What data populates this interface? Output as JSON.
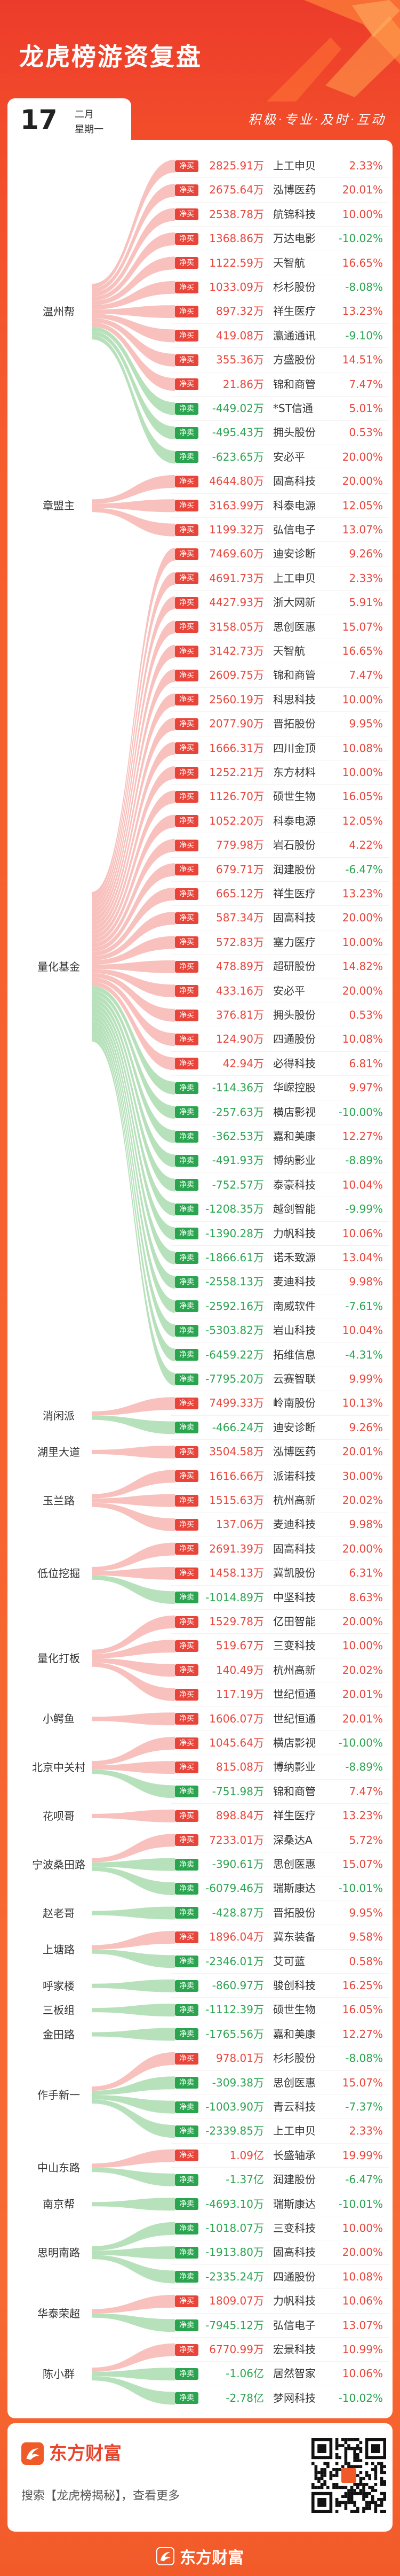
{
  "header": {
    "title": "龙虎榜游资复盘",
    "day": "17",
    "month": "二月",
    "weekday": "星期一",
    "slogan": "积极·专业·及时·互动"
  },
  "colors": {
    "brand_orange": "#f05a28",
    "buy": "#e9443a",
    "sell": "#2aa44f",
    "buy_ribbon": "#f6b1ac",
    "sell_ribbon": "#a5d9aa"
  },
  "groups": [
    {
      "name": "温州帮",
      "rows": [
        {
          "badge": "净买",
          "amount": "2825.91万",
          "stock": "上工申贝",
          "change": "2.33%"
        },
        {
          "badge": "净买",
          "amount": "2675.64万",
          "stock": "泓博医药",
          "change": "20.01%"
        },
        {
          "badge": "净买",
          "amount": "2538.78万",
          "stock": "航锦科技",
          "change": "10.00%"
        },
        {
          "badge": "净买",
          "amount": "1368.86万",
          "stock": "万达电影",
          "change": "-10.02%"
        },
        {
          "badge": "净买",
          "amount": "1122.59万",
          "stock": "天智航",
          "change": "16.65%"
        },
        {
          "badge": "净买",
          "amount": "1033.09万",
          "stock": "杉杉股份",
          "change": "-8.08%"
        },
        {
          "badge": "净买",
          "amount": "897.32万",
          "stock": "祥生医疗",
          "change": "13.23%"
        },
        {
          "badge": "净买",
          "amount": "419.08万",
          "stock": "瀛通通讯",
          "change": "-9.10%"
        },
        {
          "badge": "净买",
          "amount": "355.36万",
          "stock": "方盛股份",
          "change": "14.51%"
        },
        {
          "badge": "净买",
          "amount": "21.86万",
          "stock": "锦和商管",
          "change": "7.47%"
        },
        {
          "badge": "净卖",
          "amount": "-449.02万",
          "stock": "*ST信通",
          "change": "5.01%"
        },
        {
          "badge": "净卖",
          "amount": "-495.43万",
          "stock": "拥头股份",
          "change": "0.53%"
        },
        {
          "badge": "净卖",
          "amount": "-623.65万",
          "stock": "安必平",
          "change": "20.00%"
        }
      ]
    },
    {
      "name": "章盟主",
      "rows": [
        {
          "badge": "净买",
          "amount": "4644.80万",
          "stock": "固高科技",
          "change": "20.00%"
        },
        {
          "badge": "净买",
          "amount": "3163.99万",
          "stock": "科泰电源",
          "change": "12.05%"
        },
        {
          "badge": "净买",
          "amount": "1199.32万",
          "stock": "弘信电子",
          "change": "13.07%"
        }
      ]
    },
    {
      "name": "量化基金",
      "rows": [
        {
          "badge": "净买",
          "amount": "7469.60万",
          "stock": "迪安诊断",
          "change": "9.26%"
        },
        {
          "badge": "净买",
          "amount": "4691.73万",
          "stock": "上工申贝",
          "change": "2.33%"
        },
        {
          "badge": "净买",
          "amount": "4427.93万",
          "stock": "浙大网新",
          "change": "5.91%"
        },
        {
          "badge": "净买",
          "amount": "3158.05万",
          "stock": "思创医惠",
          "change": "15.07%"
        },
        {
          "badge": "净买",
          "amount": "3142.73万",
          "stock": "天智航",
          "change": "16.65%"
        },
        {
          "badge": "净买",
          "amount": "2609.75万",
          "stock": "锦和商管",
          "change": "7.47%"
        },
        {
          "badge": "净买",
          "amount": "2560.19万",
          "stock": "科思科技",
          "change": "10.00%"
        },
        {
          "badge": "净买",
          "amount": "2077.90万",
          "stock": "晋拓股份",
          "change": "9.95%"
        },
        {
          "badge": "净买",
          "amount": "1666.31万",
          "stock": "四川金顶",
          "change": "10.08%"
        },
        {
          "badge": "净买",
          "amount": "1252.21万",
          "stock": "东方材料",
          "change": "10.00%"
        },
        {
          "badge": "净买",
          "amount": "1126.70万",
          "stock": "硕世生物",
          "change": "16.05%"
        },
        {
          "badge": "净买",
          "amount": "1052.20万",
          "stock": "科泰电源",
          "change": "12.05%"
        },
        {
          "badge": "净买",
          "amount": "779.98万",
          "stock": "岩石股份",
          "change": "4.22%"
        },
        {
          "badge": "净买",
          "amount": "679.71万",
          "stock": "润建股份",
          "change": "-6.47%"
        },
        {
          "badge": "净买",
          "amount": "665.12万",
          "stock": "祥生医疗",
          "change": "13.23%"
        },
        {
          "badge": "净买",
          "amount": "587.34万",
          "stock": "固高科技",
          "change": "20.00%"
        },
        {
          "badge": "净买",
          "amount": "572.83万",
          "stock": "塞力医疗",
          "change": "10.00%"
        },
        {
          "badge": "净买",
          "amount": "478.89万",
          "stock": "超研股份",
          "change": "14.82%"
        },
        {
          "badge": "净买",
          "amount": "433.16万",
          "stock": "安必平",
          "change": "20.00%"
        },
        {
          "badge": "净买",
          "amount": "376.81万",
          "stock": "拥头股份",
          "change": "0.53%"
        },
        {
          "badge": "净买",
          "amount": "124.90万",
          "stock": "四通股份",
          "change": "10.08%"
        },
        {
          "badge": "净买",
          "amount": "42.94万",
          "stock": "必得科技",
          "change": "6.81%"
        },
        {
          "badge": "净卖",
          "amount": "-114.36万",
          "stock": "华嵘控股",
          "change": "9.97%"
        },
        {
          "badge": "净卖",
          "amount": "-257.63万",
          "stock": "横店影视",
          "change": "-10.00%"
        },
        {
          "badge": "净卖",
          "amount": "-362.53万",
          "stock": "嘉和美康",
          "change": "12.27%"
        },
        {
          "badge": "净卖",
          "amount": "-491.93万",
          "stock": "博纳影业",
          "change": "-8.89%"
        },
        {
          "badge": "净卖",
          "amount": "-752.57万",
          "stock": "泰豪科技",
          "change": "10.04%"
        },
        {
          "badge": "净卖",
          "amount": "-1208.35万",
          "stock": "越剑智能",
          "change": "-9.99%"
        },
        {
          "badge": "净卖",
          "amount": "-1390.28万",
          "stock": "力帆科技",
          "change": "10.06%"
        },
        {
          "badge": "净卖",
          "amount": "-1866.61万",
          "stock": "诺禾致源",
          "change": "13.04%"
        },
        {
          "badge": "净卖",
          "amount": "-2558.13万",
          "stock": "麦迪科技",
          "change": "9.98%"
        },
        {
          "badge": "净卖",
          "amount": "-2592.16万",
          "stock": "南威软件",
          "change": "-7.61%"
        },
        {
          "badge": "净卖",
          "amount": "-5303.82万",
          "stock": "岩山科技",
          "change": "10.04%"
        },
        {
          "badge": "净卖",
          "amount": "-6459.22万",
          "stock": "拓维信息",
          "change": "-4.31%"
        },
        {
          "badge": "净卖",
          "amount": "-7795.20万",
          "stock": "云赛智联",
          "change": "9.99%"
        }
      ]
    },
    {
      "name": "消闲派",
      "rows": [
        {
          "badge": "净买",
          "amount": "7499.33万",
          "stock": "岭南股份",
          "change": "10.13%"
        },
        {
          "badge": "净卖",
          "amount": "-466.24万",
          "stock": "迪安诊断",
          "change": "9.26%"
        }
      ]
    },
    {
      "name": "湖里大道",
      "rows": [
        {
          "badge": "净买",
          "amount": "3504.58万",
          "stock": "泓博医药",
          "change": "20.01%"
        }
      ]
    },
    {
      "name": "玉兰路",
      "rows": [
        {
          "badge": "净买",
          "amount": "1616.66万",
          "stock": "派诺科技",
          "change": "30.00%"
        },
        {
          "badge": "净买",
          "amount": "1515.63万",
          "stock": "杭州高新",
          "change": "20.02%"
        },
        {
          "badge": "净买",
          "amount": "137.06万",
          "stock": "麦迪科技",
          "change": "9.98%"
        }
      ]
    },
    {
      "name": "低位挖掘",
      "rows": [
        {
          "badge": "净买",
          "amount": "2691.39万",
          "stock": "固高科技",
          "change": "20.00%"
        },
        {
          "badge": "净买",
          "amount": "1458.13万",
          "stock": "冀凯股份",
          "change": "6.31%"
        },
        {
          "badge": "净卖",
          "amount": "-1014.89万",
          "stock": "中坚科技",
          "change": "8.63%"
        }
      ]
    },
    {
      "name": "量化打板",
      "rows": [
        {
          "badge": "净买",
          "amount": "1529.78万",
          "stock": "亿田智能",
          "change": "20.00%"
        },
        {
          "badge": "净买",
          "amount": "519.67万",
          "stock": "三变科技",
          "change": "10.00%"
        },
        {
          "badge": "净买",
          "amount": "140.49万",
          "stock": "杭州高新",
          "change": "20.02%"
        },
        {
          "badge": "净买",
          "amount": "117.19万",
          "stock": "世纪恒通",
          "change": "20.01%"
        }
      ]
    },
    {
      "name": "小鳄鱼",
      "rows": [
        {
          "badge": "净买",
          "amount": "1606.07万",
          "stock": "世纪恒通",
          "change": "20.01%"
        }
      ]
    },
    {
      "name": "北京中关村",
      "rows": [
        {
          "badge": "净买",
          "amount": "1045.64万",
          "stock": "横店影视",
          "change": "-10.00%"
        },
        {
          "badge": "净买",
          "amount": "815.08万",
          "stock": "博纳影业",
          "change": "-8.89%"
        },
        {
          "badge": "净卖",
          "amount": "-751.98万",
          "stock": "锦和商管",
          "change": "7.47%"
        }
      ]
    },
    {
      "name": "花呗哥",
      "rows": [
        {
          "badge": "净买",
          "amount": "898.84万",
          "stock": "祥生医疗",
          "change": "13.23%"
        }
      ]
    },
    {
      "name": "宁波桑田路",
      "rows": [
        {
          "badge": "净买",
          "amount": "7233.01万",
          "stock": "深桑达A",
          "change": "5.72%"
        },
        {
          "badge": "净卖",
          "amount": "-390.61万",
          "stock": "思创医惠",
          "change": "15.07%"
        },
        {
          "badge": "净卖",
          "amount": "-6079.46万",
          "stock": "瑞斯康达",
          "change": "-10.01%"
        }
      ]
    },
    {
      "name": "赵老哥",
      "rows": [
        {
          "badge": "净卖",
          "amount": "-428.87万",
          "stock": "晋拓股份",
          "change": "9.95%"
        }
      ]
    },
    {
      "name": "上塘路",
      "rows": [
        {
          "badge": "净买",
          "amount": "1896.04万",
          "stock": "冀东装备",
          "change": "9.58%"
        },
        {
          "badge": "净卖",
          "amount": "-2346.01万",
          "stock": "艾可蓝",
          "change": "0.58%"
        }
      ]
    },
    {
      "name": "呼家楼",
      "rows": [
        {
          "badge": "净卖",
          "amount": "-860.97万",
          "stock": "骏创科技",
          "change": "16.25%"
        }
      ]
    },
    {
      "name": "三板组",
      "rows": [
        {
          "badge": "净卖",
          "amount": "-1112.39万",
          "stock": "硕世生物",
          "change": "16.05%"
        }
      ]
    },
    {
      "name": "金田路",
      "rows": [
        {
          "badge": "净卖",
          "amount": "-1765.56万",
          "stock": "嘉和美康",
          "change": "12.27%"
        }
      ]
    },
    {
      "name": "作手新一",
      "rows": [
        {
          "badge": "净买",
          "amount": "978.01万",
          "stock": "杉杉股份",
          "change": "-8.08%"
        },
        {
          "badge": "净卖",
          "amount": "-309.38万",
          "stock": "思创医惠",
          "change": "15.07%"
        },
        {
          "badge": "净卖",
          "amount": "-1003.90万",
          "stock": "青云科技",
          "change": "-7.37%"
        },
        {
          "badge": "净卖",
          "amount": "-2339.85万",
          "stock": "上工申贝",
          "change": "2.33%"
        }
      ]
    },
    {
      "name": "中山东路",
      "rows": [
        {
          "badge": "净买",
          "amount": "1.09亿",
          "stock": "长盛轴承",
          "change": "19.99%"
        },
        {
          "badge": "净卖",
          "amount": "-1.37亿",
          "stock": "润建股份",
          "change": "-6.47%"
        }
      ]
    },
    {
      "name": "南京帮",
      "rows": [
        {
          "badge": "净卖",
          "amount": "-4693.10万",
          "stock": "瑞斯康达",
          "change": "-10.01%"
        }
      ]
    },
    {
      "name": "思明南路",
      "rows": [
        {
          "badge": "净卖",
          "amount": "-1018.07万",
          "stock": "三变科技",
          "change": "10.00%"
        },
        {
          "badge": "净卖",
          "amount": "-1913.80万",
          "stock": "固高科技",
          "change": "20.00%"
        },
        {
          "badge": "净卖",
          "amount": "-2335.24万",
          "stock": "四通股份",
          "change": "10.08%"
        }
      ]
    },
    {
      "name": "华泰荣超",
      "rows": [
        {
          "badge": "净买",
          "amount": "1809.07万",
          "stock": "力帆科技",
          "change": "10.06%"
        },
        {
          "badge": "净卖",
          "amount": "-7945.12万",
          "stock": "弘信电子",
          "change": "13.07%"
        }
      ]
    },
    {
      "name": "陈小群",
      "rows": [
        {
          "badge": "净买",
          "amount": "6770.99万",
          "stock": "宏景科技",
          "change": "10.99%"
        },
        {
          "badge": "净卖",
          "amount": "-1.06亿",
          "stock": "居然智家",
          "change": "10.06%"
        },
        {
          "badge": "净卖",
          "amount": "-2.78亿",
          "stock": "梦网科技",
          "change": "-10.02%"
        }
      ]
    }
  ],
  "footer": {
    "brand": "东方财富",
    "search_text": "搜索【龙虎榜揭秘】，查看更多",
    "logo_icon": "eastmoney-logo-icon",
    "qr_icon": "qr-code"
  },
  "bottom_bar": {
    "brand": "东方财富"
  }
}
